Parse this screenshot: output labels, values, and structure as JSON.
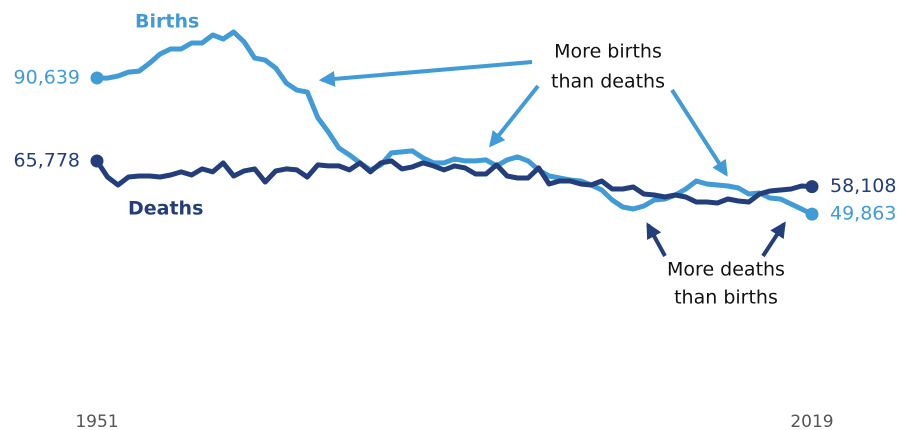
{
  "chart_data": {
    "type": "line",
    "x": [
      1951,
      1952,
      1953,
      1954,
      1955,
      1956,
      1957,
      1958,
      1959,
      1960,
      1961,
      1962,
      1963,
      1964,
      1965,
      1966,
      1967,
      1968,
      1969,
      1970,
      1971,
      1972,
      1973,
      1974,
      1975,
      1976,
      1977,
      1978,
      1979,
      1980,
      1981,
      1982,
      1983,
      1984,
      1985,
      1986,
      1987,
      1988,
      1989,
      1990,
      1991,
      1992,
      1993,
      1994,
      1995,
      1996,
      1997,
      1998,
      1999,
      2000,
      2001,
      2002,
      2003,
      2004,
      2005,
      2006,
      2007,
      2008,
      2009,
      2010,
      2011,
      2012,
      2013,
      2014,
      2015,
      2016,
      2017,
      2018,
      2019
    ],
    "xlim": [
      1951,
      2019
    ],
    "xticks": [
      1951,
      2019
    ],
    "ylim": [
      30000,
      110000
    ],
    "series": [
      {
        "name": "Births",
        "color": "#419bd6",
        "values": [
          90639,
          90600,
          91200,
          92400,
          92700,
          95100,
          97800,
          99300,
          99300,
          101100,
          101100,
          103500,
          102300,
          104400,
          101400,
          96600,
          96000,
          93600,
          89100,
          87000,
          86400,
          78700,
          74500,
          69700,
          67600,
          65200,
          63100,
          64600,
          68200,
          68500,
          68800,
          66700,
          65200,
          65200,
          66400,
          65800,
          65800,
          66100,
          64300,
          66100,
          67000,
          65800,
          63100,
          61300,
          60700,
          60100,
          59800,
          58600,
          57100,
          54100,
          52000,
          51400,
          52300,
          54100,
          54400,
          55600,
          57400,
          59800,
          58900,
          58600,
          58300,
          57700,
          55900,
          56200,
          54700,
          54400,
          52900,
          51400,
          49863
        ],
        "value_labels": [
          "90,639",
          null,
          null,
          null,
          null,
          null,
          null,
          null,
          null,
          null,
          null,
          null,
          null,
          null,
          null,
          null,
          null,
          null,
          null,
          null,
          null,
          null,
          null,
          null,
          null,
          null,
          null,
          null,
          null,
          null,
          null,
          null,
          null,
          null,
          null,
          null,
          null,
          null,
          null,
          null,
          null,
          null,
          null,
          null,
          null,
          null,
          null,
          null,
          null,
          null,
          null,
          null,
          null,
          null,
          null,
          null,
          null,
          null,
          null,
          null,
          null,
          null,
          null,
          null,
          null,
          null,
          null,
          null,
          "49,863"
        ]
      },
      {
        "name": "Deaths",
        "color": "#243e7c",
        "values": [
          65778,
          61000,
          58600,
          61000,
          61300,
          61300,
          61000,
          61600,
          62500,
          61600,
          63400,
          62500,
          65200,
          61300,
          62800,
          63400,
          59500,
          62800,
          63400,
          63100,
          61000,
          64600,
          64300,
          64300,
          63100,
          65200,
          62500,
          65200,
          65800,
          63400,
          64000,
          65200,
          64300,
          63100,
          64300,
          63700,
          61900,
          61900,
          64600,
          61300,
          60700,
          60700,
          63700,
          58900,
          59800,
          59800,
          58900,
          58600,
          59800,
          57400,
          57400,
          58000,
          55900,
          55600,
          55000,
          55600,
          55000,
          53500,
          53500,
          53200,
          54400,
          53800,
          53500,
          55900,
          56800,
          57100,
          57400,
          58300,
          58108
        ],
        "value_labels": [
          "65,778",
          null,
          null,
          null,
          null,
          null,
          null,
          null,
          null,
          null,
          null,
          null,
          null,
          null,
          null,
          null,
          null,
          null,
          null,
          null,
          null,
          null,
          null,
          null,
          null,
          null,
          null,
          null,
          null,
          null,
          null,
          null,
          null,
          null,
          null,
          null,
          null,
          null,
          null,
          null,
          null,
          null,
          null,
          null,
          null,
          null,
          null,
          null,
          null,
          null,
          null,
          null,
          null,
          null,
          null,
          null,
          null,
          null,
          null,
          null,
          null,
          null,
          null,
          null,
          null,
          null,
          null,
          null,
          "58,108"
        ]
      }
    ],
    "annotations": [
      [
        "More births",
        "than deaths"
      ],
      [
        "More deaths",
        "than births"
      ]
    ]
  }
}
